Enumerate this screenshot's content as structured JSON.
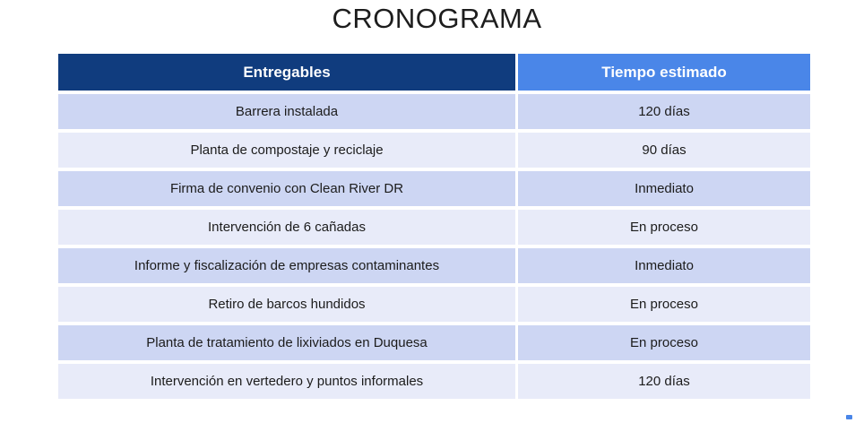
{
  "title": "CRONOGRAMA",
  "colors": {
    "title_text": "#1d1d1d",
    "header_left_bg": "#103c7e",
    "header_right_bg": "#4a86e8",
    "header_text": "#ffffff",
    "row_odd_bg": "#cdd6f3",
    "row_even_bg": "#e8ebf9",
    "body_text": "#1c1c1c"
  },
  "table": {
    "columns": [
      "Entregables",
      "Tiempo estimado"
    ],
    "rows": [
      {
        "entregable": "Barrera instalada",
        "tiempo": "120 días"
      },
      {
        "entregable": "Planta de compostaje y reciclaje",
        "tiempo": "90 días"
      },
      {
        "entregable": "Firma de convenio con Clean River DR",
        "tiempo": "Inmediato"
      },
      {
        "entregable": "Intervención de 6 cañadas",
        "tiempo": "En proceso"
      },
      {
        "entregable": "Informe y fiscalización de empresas contaminantes",
        "tiempo": "Inmediato"
      },
      {
        "entregable": "Retiro de barcos hundidos",
        "tiempo": "En proceso"
      },
      {
        "entregable": "Planta de tratamiento de lixiviados en Duquesa",
        "tiempo": "En proceso"
      },
      {
        "entregable": "Intervención en vertedero y puntos informales",
        "tiempo": "120 días"
      }
    ]
  }
}
